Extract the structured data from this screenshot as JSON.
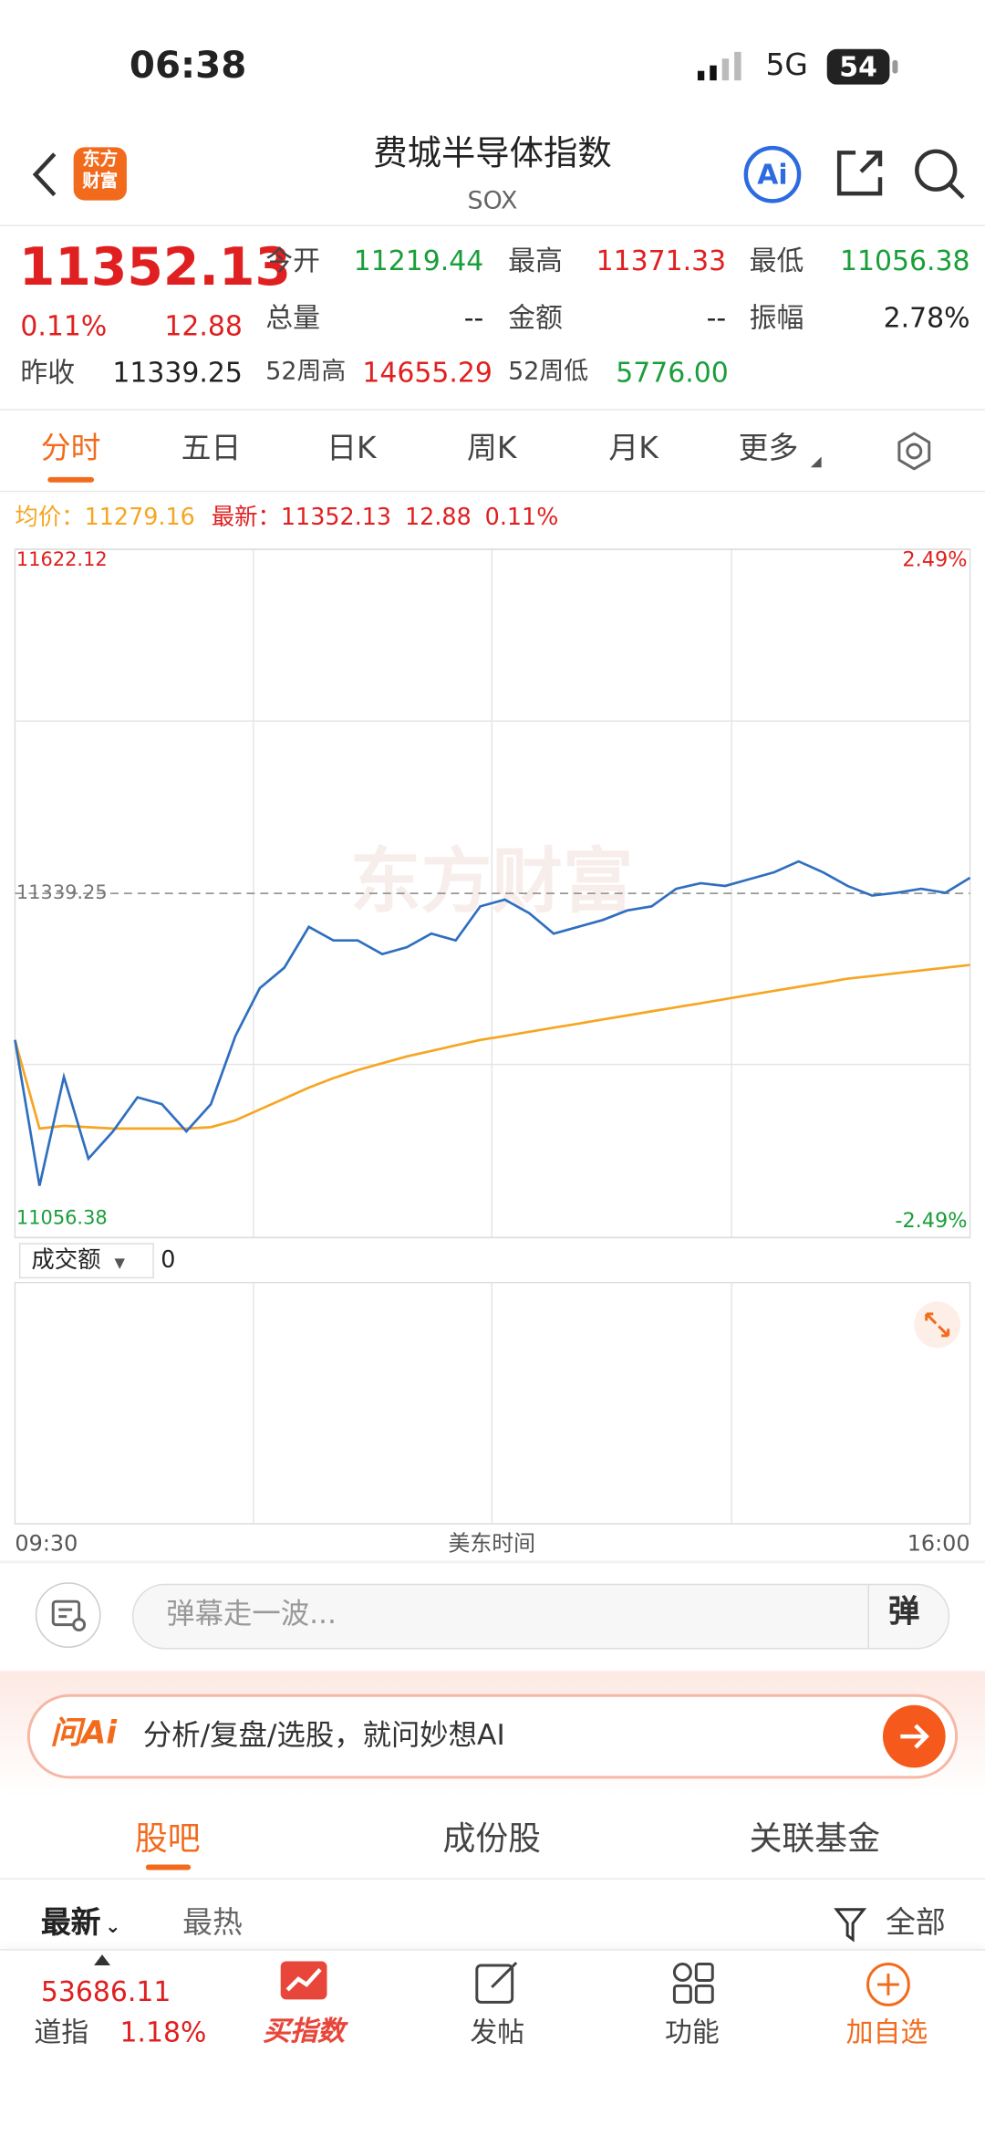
{
  "status_bar": {
    "time": "06:38",
    "network": "5G",
    "battery": "54"
  },
  "header": {
    "logo_lines": [
      "东方",
      "财富"
    ],
    "title": "费城半导体指数",
    "code": "SOX",
    "ai": "Ai"
  },
  "quote": {
    "price": "11352.13",
    "change_pct": "0.11%",
    "change": "12.88",
    "prev_close_label": "昨收",
    "prev_close": "11339.25",
    "fields": [
      {
        "label": "今开",
        "value": "11219.44"
      },
      {
        "label": "最高",
        "value": "11371.33"
      },
      {
        "label": "最低",
        "value": "11056.38"
      },
      {
        "label": "总量",
        "value": "--"
      },
      {
        "label": "金额",
        "value": "--"
      },
      {
        "label": "振幅",
        "value": "2.78%"
      },
      {
        "label": "52周高",
        "value": "14655.29"
      },
      {
        "label": "52周低",
        "value": "5776.00"
      }
    ]
  },
  "tabs": [
    "分时",
    "五日",
    "日K",
    "周K",
    "月K",
    "更多"
  ],
  "info_bar": {
    "avg_label": "均价：",
    "avg": "11279.16",
    "latest_label": "最新：",
    "latest": "11352.13",
    "change": "12.88",
    "change_pct": "0.11%"
  },
  "watermark": "东方财富",
  "chart_data": {
    "type": "line",
    "x_label": "美东时间",
    "categories": [
      "09:30",
      null,
      null,
      null,
      null,
      null,
      null,
      null,
      null,
      null,
      null,
      null,
      null,
      null,
      null,
      null,
      null,
      null,
      null,
      null,
      null,
      null,
      null,
      null,
      null,
      null,
      null,
      null,
      null,
      null,
      null,
      null,
      null,
      null,
      null,
      null,
      null,
      null,
      null,
      "16:00"
    ],
    "series": [
      {
        "name": "最新",
        "color": "#2f6fbf",
        "values": [
          11218.8,
          11098.9,
          11188.5,
          11121.3,
          11143.7,
          11171.7,
          11166.1,
          11143.7,
          11166.1,
          11222.1,
          11261.4,
          11278.2,
          11311.8,
          11300.6,
          11300.6,
          11289.4,
          11295.0,
          11306.2,
          11300.6,
          11328.6,
          11334.2,
          11323.0,
          11306.2,
          11311.8,
          11317.4,
          11325.2,
          11328.6,
          11343.1,
          11347.6,
          11345.4,
          11351.0,
          11356.6,
          11365.6,
          11356.6,
          11345.4,
          11337.5,
          11339.8,
          11343.1,
          11339.8,
          11352.13
        ]
      },
      {
        "name": "均价",
        "color": "#f5a623",
        "values": [
          11218.8,
          11146.0,
          11148.2,
          11147.1,
          11146.0,
          11146.0,
          11146.0,
          11146.0,
          11147.1,
          11152.7,
          11161.7,
          11170.6,
          11179.6,
          11187.4,
          11194.1,
          11199.7,
          11205.3,
          11209.8,
          11214.3,
          11218.8,
          11222.1,
          11225.5,
          11228.9,
          11232.2,
          11235.6,
          11239.0,
          11242.3,
          11245.7,
          11249.0,
          11252.4,
          11255.8,
          11259.1,
          11262.5,
          11265.8,
          11269.2,
          11271.4,
          11273.7,
          11275.9,
          11278.2,
          11280.4
        ]
      }
    ],
    "ylim": [
      11056.38,
      11622.12
    ],
    "yticks": [
      11056.38,
      11339.25,
      11622.12
    ],
    "y2lim": [
      -2.49,
      2.49
    ],
    "y2ticks": [
      {
        "value": -2.49,
        "label": "-2.49%"
      },
      {
        "value": 2.49,
        "label": "2.49%"
      }
    ]
  },
  "volume": {
    "selector": "成交额",
    "value": "0"
  },
  "danmaku": {
    "placeholder": "弹幕走一波...",
    "button": "弹"
  },
  "ask_ai": {
    "logo": "问Ai",
    "text": "分析/复盘/选股，就问妙想AI"
  },
  "section_tabs": [
    "股吧",
    "成份股",
    "关联基金"
  ],
  "filters": {
    "latest": "最新",
    "hot": "最热",
    "all": "全部"
  },
  "bottom_bar": {
    "ticker_value": "53686.11",
    "ticker_name": "道指",
    "ticker_pct": "1.18%",
    "items": [
      "买指数",
      "发帖",
      "功能",
      "加自选"
    ]
  }
}
